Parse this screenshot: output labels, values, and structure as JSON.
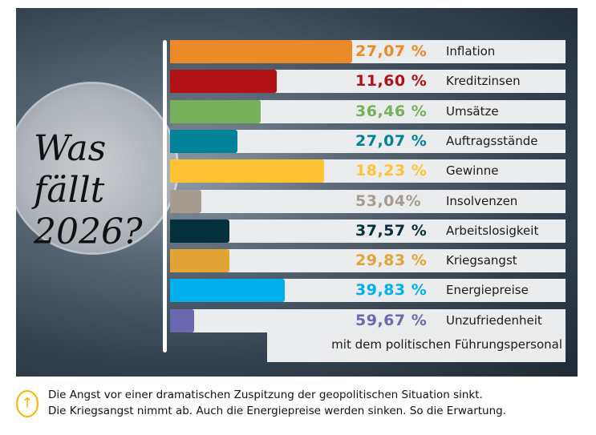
{
  "chart_data": {
    "type": "bar",
    "title": "Was fällt 2026?",
    "title_lines": [
      "Was",
      "fällt",
      "2026?"
    ],
    "categories": [
      "Inflation",
      "Kreditzinsen",
      "Umsätze",
      "Auftragsstände",
      "Gewinne",
      "Insolvenzen",
      "Arbeitslosigkeit",
      "Kriegsangst",
      "Energiepreise",
      "Unzufriedenheit"
    ],
    "category_extra": "mit dem politischen Führungspersonal",
    "value_labels": [
      "27,07 %",
      "11,60 %",
      "36,46 %",
      "27,07 %",
      "18,23 %",
      "53,04%",
      "37,57 %",
      "29,83 %",
      "39,83 %",
      "59,67 %"
    ],
    "values": [
      27.07,
      11.6,
      36.46,
      27.07,
      18.23,
      53.04,
      37.57,
      29.83,
      39.83,
      59.67
    ],
    "bar_fill_fraction": [
      0.46,
      0.27,
      0.23,
      0.17,
      0.39,
      0.08,
      0.15,
      0.15,
      0.29,
      0.06
    ],
    "colors": [
      "#ec8a27",
      "#b01217",
      "#76b05a",
      "#00829b",
      "#ffc234",
      "#a69b90",
      "#06303d",
      "#e2a535",
      "#00b0ec",
      "#6c68b0"
    ]
  },
  "note": {
    "icon": "arrow-up-circle-icon",
    "lines": [
      "Die Angst vor einer dramatischen Zuspitzung der geopolitischen Situation sinkt.",
      "Die Kriegsangst nimmt ab. Auch die Energiepreise werden sinken. So die Erwartung."
    ]
  }
}
